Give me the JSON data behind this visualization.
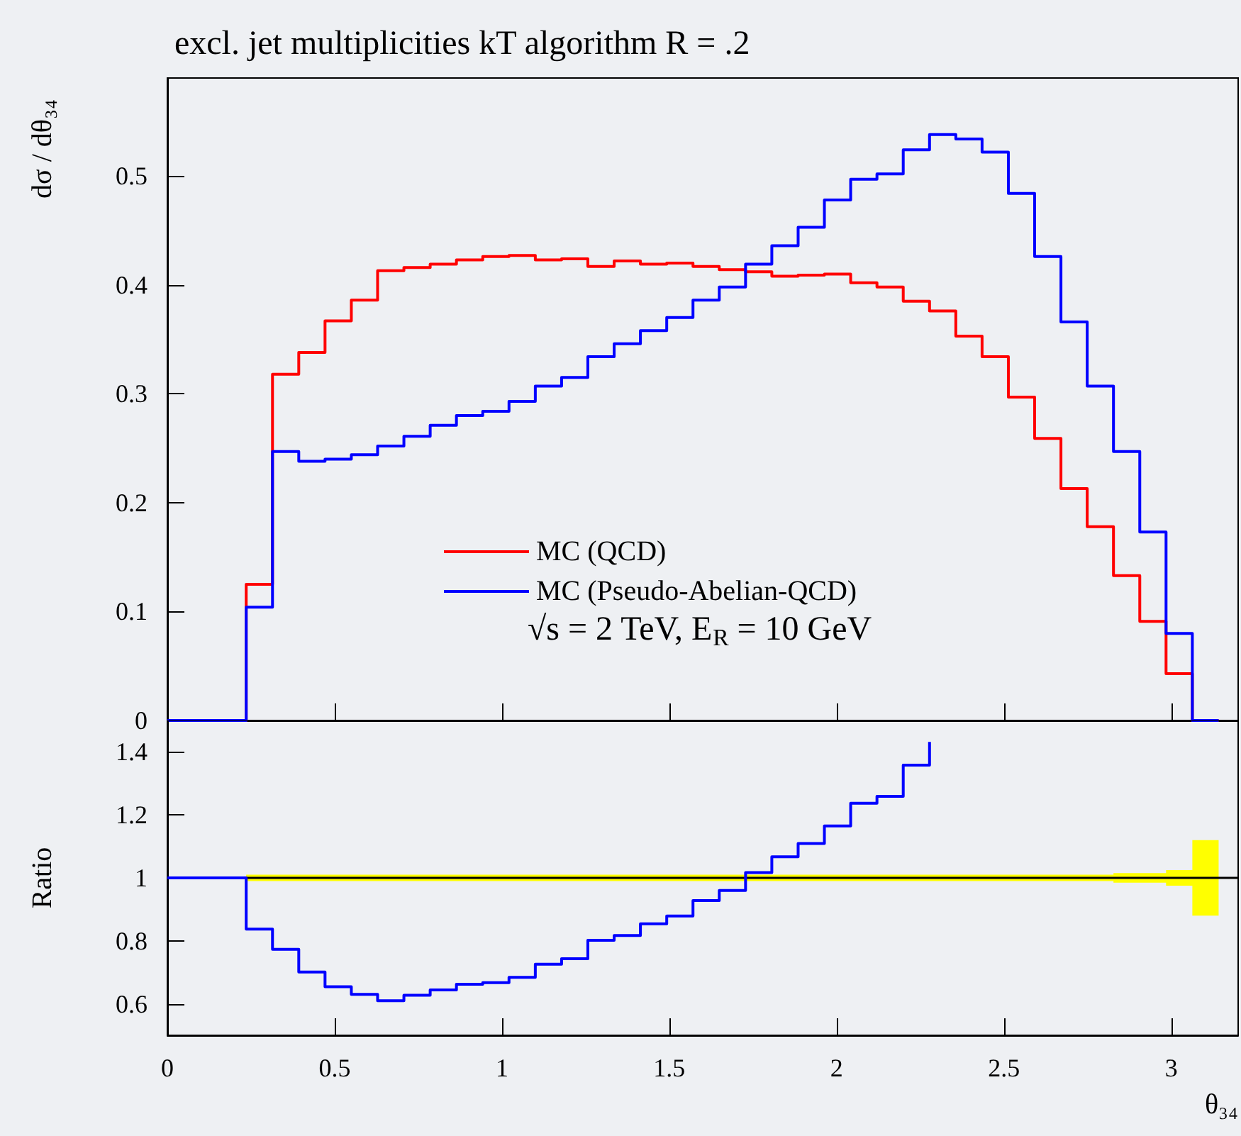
{
  "chart_data": [
    {
      "type": "histogram",
      "title": "excl. jet multiplicities kT algorithm R = .2",
      "ylabel": "dσ / dθ₃₄",
      "bins": [
        0,
        0.0785,
        0.1571,
        0.2356,
        0.3142,
        0.3927,
        0.4712,
        0.5498,
        0.6283,
        0.7069,
        0.7854,
        0.8639,
        0.9425,
        1.021,
        1.0996,
        1.1781,
        1.2566,
        1.3352,
        1.4137,
        1.4923,
        1.5708,
        1.6493,
        1.7279,
        1.8064,
        1.885,
        1.9635,
        2.042,
        2.1206,
        2.1991,
        2.2777,
        2.3562,
        2.4347,
        2.5133,
        2.5918,
        2.6704,
        2.7489,
        2.8274,
        2.906,
        2.9845,
        3.0631,
        3.1416
      ],
      "series": [
        {
          "name": "MC (QCD)",
          "color": "#ff0000",
          "values": [
            0,
            0,
            0,
            0.125,
            0.318,
            0.338,
            0.367,
            0.386,
            0.413,
            0.416,
            0.419,
            0.423,
            0.426,
            0.427,
            0.423,
            0.424,
            0.417,
            0.422,
            0.419,
            0.42,
            0.417,
            0.414,
            0.412,
            0.408,
            0.409,
            0.41,
            0.402,
            0.398,
            0.385,
            0.376,
            0.353,
            0.334,
            0.297,
            0.259,
            0.213,
            0.178,
            0.133,
            0.091,
            0.043,
            0
          ]
        },
        {
          "name": "MC (Pseudo-Abelian-QCD)",
          "color": "#0000ff",
          "values": [
            0,
            0,
            0,
            0.104,
            0.247,
            0.238,
            0.24,
            0.244,
            0.252,
            0.261,
            0.271,
            0.28,
            0.284,
            0.293,
            0.307,
            0.315,
            0.334,
            0.346,
            0.358,
            0.37,
            0.386,
            0.398,
            0.419,
            0.436,
            0.453,
            0.478,
            0.497,
            0.502,
            0.524,
            0.538,
            0.534,
            0.522,
            0.484,
            0.426,
            0.366,
            0.307,
            0.247,
            0.173,
            0.08,
            0
          ]
        }
      ],
      "xlim": [
        0,
        3.2
      ],
      "xticks": [
        0,
        0.5,
        1,
        1.5,
        2,
        2.5,
        3
      ],
      "ylim": [
        0,
        0.59
      ],
      "yticks": [
        0,
        0.1,
        0.2,
        0.3,
        0.4,
        0.5
      ],
      "tick_labels": "y",
      "legend": "bottom",
      "annotations": [
        "√s = 2 TeV, E$_{R}$ = 10 GeV"
      ]
    },
    {
      "type": "step",
      "ylabel": "Ratio",
      "xlabel": "θ₃₄",
      "x": [
        0,
        0.0785,
        0.1571,
        0.2356,
        0.3142,
        0.3927,
        0.4712,
        0.5498,
        0.6283,
        0.7069,
        0.7854,
        0.8639,
        0.9425,
        1.021,
        1.0996,
        1.1781,
        1.2566,
        1.3352,
        1.4137,
        1.4923,
        1.5708,
        1.6493,
        1.7279,
        1.8064,
        1.885,
        1.9635,
        2.042,
        2.1206,
        2.1991,
        2.2777,
        2.3562,
        2.4347,
        2.5133,
        2.5918,
        2.6704,
        2.7489,
        2.8274,
        2.906,
        2.9845,
        3.0631,
        3.1416
      ],
      "series": [
        {
          "color": "#ffff00",
          "values": [
            null,
            null,
            null,
            null,
            null,
            null,
            null,
            null,
            null,
            null,
            null,
            null,
            null,
            null,
            null,
            null,
            null,
            null,
            null,
            null,
            null,
            null,
            null,
            null,
            null,
            null,
            null,
            null,
            null,
            null,
            null,
            null,
            null,
            null,
            null,
            null,
            null,
            null,
            null,
            null,
            null
          ],
          "lower": [
            null,
            null,
            null,
            0.99,
            0.99,
            0.99,
            0.99,
            0.99,
            0.99,
            0.99,
            0.99,
            0.99,
            0.99,
            0.99,
            0.99,
            0.99,
            0.99,
            0.99,
            0.99,
            0.99,
            0.99,
            0.99,
            0.99,
            0.99,
            0.99,
            0.99,
            0.99,
            0.99,
            0.99,
            0.99,
            0.99,
            0.99,
            0.99,
            0.99,
            0.99,
            0.99,
            0.985,
            0.985,
            0.975,
            0.88,
            0.88
          ],
          "upper": [
            null,
            null,
            null,
            1.01,
            1.01,
            1.01,
            1.01,
            1.01,
            1.01,
            1.01,
            1.01,
            1.01,
            1.01,
            1.01,
            1.01,
            1.01,
            1.01,
            1.01,
            1.01,
            1.01,
            1.01,
            1.01,
            1.01,
            1.01,
            1.01,
            1.01,
            1.01,
            1.01,
            1.01,
            1.01,
            1.01,
            1.01,
            1.01,
            1.01,
            1.01,
            1.01,
            1.015,
            1.015,
            1.025,
            1.12,
            1.12
          ]
        },
        {
          "color": "#0000ff",
          "values": [
            1,
            1,
            1,
            0.837,
            0.773,
            0.701,
            0.654,
            0.63,
            0.61,
            0.627,
            0.644,
            0.662,
            0.667,
            0.684,
            0.726,
            0.743,
            0.802,
            0.817,
            0.854,
            0.879,
            0.928,
            0.96,
            1.017,
            1.067,
            1.109,
            1.165,
            1.237,
            1.259,
            1.358,
            1.432,
            null,
            null,
            null,
            null,
            null,
            null,
            null,
            null,
            null,
            null,
            null
          ]
        }
      ],
      "ref_lines": [
        {
          "axis": "y",
          "value": 1,
          "color": "#000000"
        }
      ],
      "xlim": [
        0,
        3.2
      ],
      "xticks": [
        0,
        0.5,
        1,
        1.5,
        2,
        2.5,
        3
      ],
      "ylim": [
        0.5,
        1.5
      ],
      "yticks": [
        0.6,
        0.8,
        1,
        1.2,
        1.4
      ]
    }
  ]
}
